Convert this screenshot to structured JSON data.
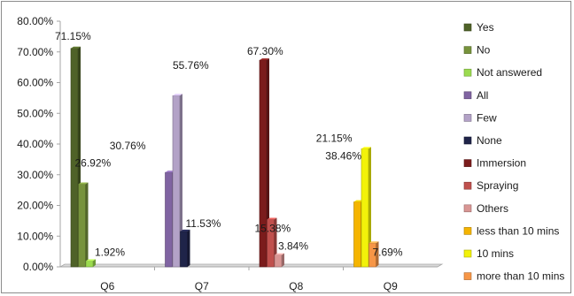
{
  "chart_data": {
    "type": "bar",
    "title": "",
    "xlabel": "",
    "ylabel": "",
    "ylim": [
      0,
      80
    ],
    "y_tick_step": 10,
    "y_tick_format": "percent_2dp",
    "grid": false,
    "legend_position": "right",
    "categories": [
      "Q6",
      "Q7",
      "Q8",
      "Q9"
    ],
    "series": [
      {
        "name": "Yes",
        "category": "Q6",
        "value": 71.15,
        "label": "71.15%",
        "color": "#4f6228"
      },
      {
        "name": "No",
        "category": "Q6",
        "value": 26.92,
        "label": "26.92%",
        "color": "#77933c"
      },
      {
        "name": "Not answered",
        "category": "Q6",
        "value": 1.92,
        "label": "1.92%",
        "color": "#9bdb4f"
      },
      {
        "name": "All",
        "category": "Q7",
        "value": 30.76,
        "label": "30.76%",
        "color": "#8064a2"
      },
      {
        "name": "Few",
        "category": "Q7",
        "value": 55.76,
        "label": "55.76%",
        "color": "#b3a2c7"
      },
      {
        "name": "None",
        "category": "Q7",
        "value": 11.53,
        "label": "11.53%",
        "color": "#1f2449"
      },
      {
        "name": "Immersion",
        "category": "Q8",
        "value": 67.3,
        "label": "67.30%",
        "color": "#7b1c1c"
      },
      {
        "name": "Spraying",
        "category": "Q8",
        "value": 15.38,
        "label": "15.38%",
        "color": "#c0504d"
      },
      {
        "name": "Others",
        "category": "Q8",
        "value": 3.84,
        "label": "3.84%",
        "color": "#d99694"
      },
      {
        "name": "less than 10 mins",
        "category": "Q9",
        "value": 21.15,
        "label": "21.15%",
        "color": "#f5b400"
      },
      {
        "name": "10 mins",
        "category": "Q9",
        "value": 38.46,
        "label": "38.46%",
        "color": "#f2f20a"
      },
      {
        "name": "more than 10 mins",
        "category": "Q9",
        "value": 7.69,
        "label": "7.69%",
        "color": "#f79646"
      }
    ]
  }
}
